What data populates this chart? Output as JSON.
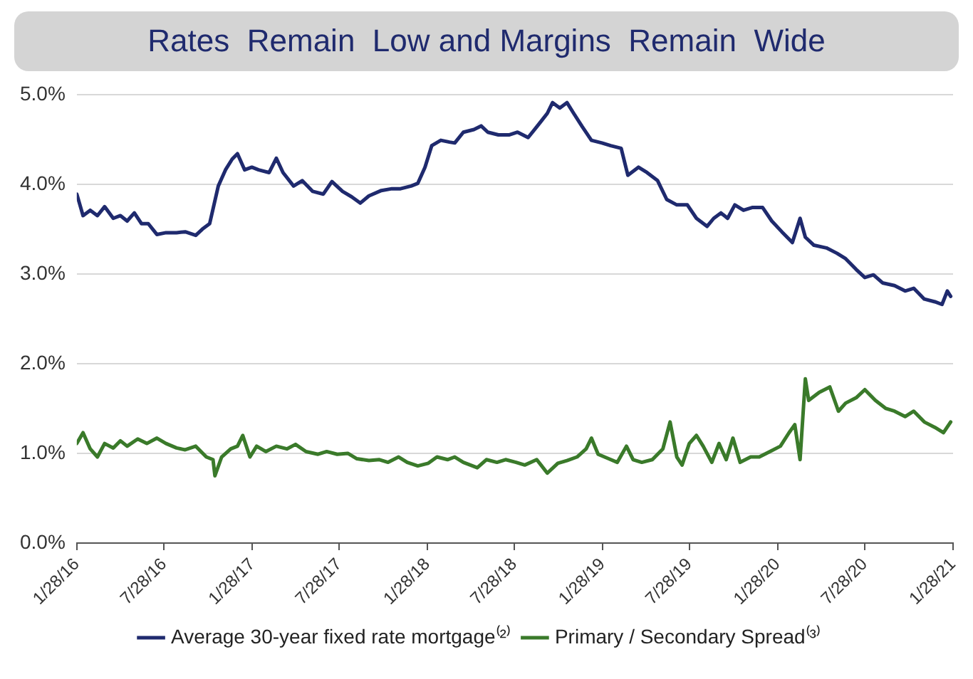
{
  "chart_data": {
    "type": "line",
    "title": "Rates  Remain  Low and Margins  Remain  Wide",
    "xlim": [
      "2016-01-28",
      "2021-01-28"
    ],
    "xticks": [
      {
        "value": "2016-01-28",
        "label": "1/28/16"
      },
      {
        "value": "2016-07-28",
        "label": "7/28/16"
      },
      {
        "value": "2017-01-28",
        "label": "1/28/17"
      },
      {
        "value": "2017-07-28",
        "label": "7/28/17"
      },
      {
        "value": "2018-01-28",
        "label": "1/28/18"
      },
      {
        "value": "2018-07-28",
        "label": "7/28/18"
      },
      {
        "value": "2019-01-28",
        "label": "1/28/19"
      },
      {
        "value": "2019-07-28",
        "label": "7/28/19"
      },
      {
        "value": "2020-01-28",
        "label": "1/28/20"
      },
      {
        "value": "2020-07-28",
        "label": "7/28/20"
      },
      {
        "value": "2021-01-28",
        "label": "1/28/21"
      }
    ],
    "ylim": [
      0,
      5
    ],
    "yticks": [
      {
        "value": 0,
        "label": "0.0%"
      },
      {
        "value": 1,
        "label": "1.0%"
      },
      {
        "value": 2,
        "label": "2.0%"
      },
      {
        "value": 3,
        "label": "3.0%"
      },
      {
        "value": 4,
        "label": "4.0%"
      },
      {
        "value": 5,
        "label": "5.0%"
      }
    ],
    "grid": "y",
    "legend": "bottom",
    "marker": "none",
    "line_style": "solid",
    "series": [
      {
        "name": "Average 30-year fixed rate mortgage⁽²⁾",
        "color": "#1f2a6e",
        "x": [
          "2016-01-28",
          "2016-02-10",
          "2016-02-25",
          "2016-03-11",
          "2016-03-26",
          "2016-04-13",
          "2016-04-28",
          "2016-05-12",
          "2016-05-27",
          "2016-06-11",
          "2016-06-25",
          "2016-07-13",
          "2016-08-01",
          "2016-08-23",
          "2016-09-10",
          "2016-10-02",
          "2016-10-16",
          "2016-10-31",
          "2016-11-18",
          "2016-12-03",
          "2016-12-17",
          "2016-12-28",
          "2017-01-12",
          "2017-01-27",
          "2017-02-10",
          "2017-03-04",
          "2017-03-19",
          "2017-04-02",
          "2017-04-24",
          "2017-05-12",
          "2017-06-03",
          "2017-06-25",
          "2017-07-13",
          "2017-08-04",
          "2017-08-23",
          "2017-09-10",
          "2017-09-28",
          "2017-10-24",
          "2017-11-15",
          "2017-12-03",
          "2017-12-25",
          "2018-01-08",
          "2018-01-23",
          "2018-02-06",
          "2018-02-25",
          "2018-03-15",
          "2018-03-26",
          "2018-04-13",
          "2018-05-05",
          "2018-05-20",
          "2018-06-03",
          "2018-06-25",
          "2018-07-17",
          "2018-08-04",
          "2018-08-26",
          "2018-09-13",
          "2018-10-05",
          "2018-10-16",
          "2018-10-31",
          "2018-11-15",
          "2018-11-29",
          "2018-12-17",
          "2019-01-05",
          "2019-01-27",
          "2019-02-14",
          "2019-03-08",
          "2019-03-22",
          "2019-04-13",
          "2019-05-01",
          "2019-05-23",
          "2019-06-11",
          "2019-07-02",
          "2019-07-24",
          "2019-08-12",
          "2019-09-03",
          "2019-09-17",
          "2019-10-02",
          "2019-10-16",
          "2019-10-31",
          "2019-11-18",
          "2019-12-06",
          "2019-12-28",
          "2020-01-16",
          "2020-02-06",
          "2020-02-28",
          "2020-03-15",
          "2020-03-26",
          "2020-04-13",
          "2020-05-09",
          "2020-05-31",
          "2020-06-18",
          "2020-07-10",
          "2020-07-28",
          "2020-08-15",
          "2020-09-03",
          "2020-09-28",
          "2020-10-20",
          "2020-11-07",
          "2020-11-29",
          "2020-12-21",
          "2021-01-05",
          "2021-01-16",
          "2021-01-23"
        ],
        "values": [
          3.89,
          3.65,
          3.71,
          3.65,
          3.75,
          3.62,
          3.65,
          3.59,
          3.68,
          3.56,
          3.56,
          3.44,
          3.46,
          3.46,
          3.47,
          3.43,
          3.5,
          3.56,
          3.98,
          4.16,
          4.28,
          4.34,
          4.16,
          4.19,
          4.16,
          4.13,
          4.29,
          4.13,
          3.98,
          4.04,
          3.92,
          3.89,
          4.03,
          3.92,
          3.86,
          3.79,
          3.87,
          3.93,
          3.95,
          3.95,
          3.98,
          4.01,
          4.19,
          4.43,
          4.49,
          4.47,
          4.46,
          4.58,
          4.61,
          4.65,
          4.58,
          4.55,
          4.55,
          4.58,
          4.52,
          4.64,
          4.79,
          4.91,
          4.85,
          4.91,
          4.79,
          4.64,
          4.49,
          4.46,
          4.43,
          4.4,
          4.1,
          4.19,
          4.13,
          4.04,
          3.83,
          3.77,
          3.77,
          3.62,
          3.53,
          3.62,
          3.68,
          3.62,
          3.77,
          3.71,
          3.74,
          3.74,
          3.59,
          3.47,
          3.35,
          3.62,
          3.41,
          3.32,
          3.29,
          3.23,
          3.17,
          3.05,
          2.96,
          2.99,
          2.9,
          2.87,
          2.81,
          2.84,
          2.72,
          2.69,
          2.66,
          2.81,
          2.75
        ]
      },
      {
        "name": "Primary / Secondary Spread⁽³⁾",
        "color": "#3a7a2a",
        "x": [
          "2016-01-28",
          "2016-02-10",
          "2016-02-25",
          "2016-03-11",
          "2016-03-26",
          "2016-04-13",
          "2016-04-28",
          "2016-05-12",
          "2016-06-03",
          "2016-06-22",
          "2016-07-13",
          "2016-08-01",
          "2016-08-23",
          "2016-09-10",
          "2016-10-02",
          "2016-10-24",
          "2016-11-07",
          "2016-11-11",
          "2016-11-25",
          "2016-12-14",
          "2016-12-28",
          "2017-01-08",
          "2017-01-23",
          "2017-02-06",
          "2017-02-25",
          "2017-03-19",
          "2017-04-10",
          "2017-04-28",
          "2017-05-20",
          "2017-06-14",
          "2017-07-02",
          "2017-07-24",
          "2017-08-15",
          "2017-09-03",
          "2017-09-28",
          "2017-10-20",
          "2017-11-07",
          "2017-11-29",
          "2017-12-17",
          "2018-01-08",
          "2018-01-30",
          "2018-02-17",
          "2018-03-11",
          "2018-03-26",
          "2018-04-13",
          "2018-05-12",
          "2018-05-31",
          "2018-06-22",
          "2018-07-10",
          "2018-08-01",
          "2018-08-19",
          "2018-09-13",
          "2018-10-05",
          "2018-10-27",
          "2018-11-15",
          "2018-12-06",
          "2018-12-25",
          "2019-01-05",
          "2019-01-19",
          "2019-02-10",
          "2019-02-28",
          "2019-03-19",
          "2019-04-02",
          "2019-04-20",
          "2019-05-12",
          "2019-06-03",
          "2019-06-18",
          "2019-07-02",
          "2019-07-13",
          "2019-07-28",
          "2019-08-12",
          "2019-08-26",
          "2019-09-13",
          "2019-09-28",
          "2019-10-13",
          "2019-10-27",
          "2019-11-11",
          "2019-12-03",
          "2019-12-21",
          "2020-01-12",
          "2020-02-03",
          "2020-02-21",
          "2020-03-04",
          "2020-03-15",
          "2020-03-26",
          "2020-04-02",
          "2020-04-24",
          "2020-05-16",
          "2020-06-03",
          "2020-06-18",
          "2020-07-10",
          "2020-07-28",
          "2020-08-19",
          "2020-09-10",
          "2020-09-28",
          "2020-10-20",
          "2020-11-07",
          "2020-11-29",
          "2020-12-21",
          "2021-01-08",
          "2021-01-23"
        ],
        "values": [
          1.11,
          1.23,
          1.05,
          0.96,
          1.11,
          1.06,
          1.14,
          1.08,
          1.16,
          1.11,
          1.17,
          1.11,
          1.06,
          1.04,
          1.08,
          0.96,
          0.93,
          0.75,
          0.96,
          1.05,
          1.08,
          1.2,
          0.96,
          1.08,
          1.02,
          1.08,
          1.05,
          1.1,
          1.02,
          0.99,
          1.02,
          0.99,
          1.0,
          0.94,
          0.92,
          0.93,
          0.9,
          0.96,
          0.9,
          0.86,
          0.89,
          0.96,
          0.93,
          0.96,
          0.9,
          0.84,
          0.93,
          0.9,
          0.93,
          0.9,
          0.87,
          0.93,
          0.78,
          0.89,
          0.92,
          0.96,
          1.05,
          1.17,
          0.99,
          0.94,
          0.9,
          1.08,
          0.93,
          0.9,
          0.93,
          1.05,
          1.35,
          0.96,
          0.87,
          1.11,
          1.2,
          1.08,
          0.9,
          1.11,
          0.93,
          1.17,
          0.9,
          0.96,
          0.96,
          1.02,
          1.08,
          1.23,
          1.32,
          0.93,
          1.83,
          1.59,
          1.68,
          1.74,
          1.47,
          1.56,
          1.62,
          1.71,
          1.59,
          1.5,
          1.47,
          1.41,
          1.47,
          1.35,
          1.29,
          1.23,
          1.35
        ]
      }
    ]
  }
}
